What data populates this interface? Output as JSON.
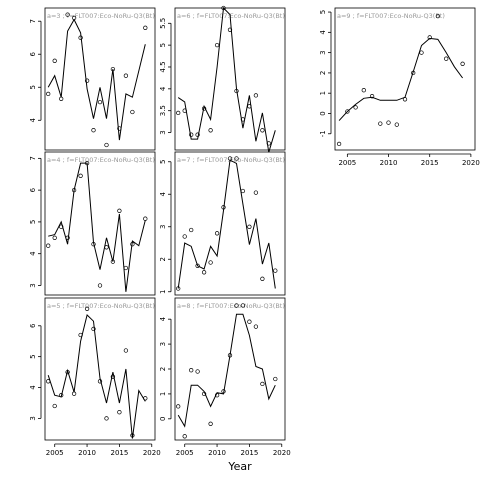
{
  "chart_data": {
    "type": "scatter",
    "layout": "3x3 small multiples (column-major)",
    "xlabel": "Year",
    "x_ticks": [
      2005,
      2010,
      2015,
      2020
    ],
    "x_range": [
      2003.5,
      2020.5
    ],
    "grid": false,
    "panels": [
      {
        "label": "a=3 ; f=FLT007:Eco-NoRu-Q3(Bt)",
        "xlim": [
          2003.5,
          2020.5
        ],
        "ylim": [
          3.1,
          7.4
        ],
        "yticks": [
          4,
          5,
          6,
          7
        ],
        "points": [
          [
            2004,
            4.8
          ],
          [
            2005,
            5.8
          ],
          [
            2006,
            4.65
          ],
          [
            2007,
            7.2
          ],
          [
            2008,
            7.1
          ],
          [
            2009,
            6.5
          ],
          [
            2010,
            5.2
          ],
          [
            2011,
            3.7
          ],
          [
            2012,
            4.55
          ],
          [
            2013,
            3.25
          ],
          [
            2014,
            5.55
          ],
          [
            2015,
            3.75
          ],
          [
            2016,
            5.35
          ],
          [
            2017,
            4.25
          ],
          [
            2019,
            6.8
          ]
        ],
        "line": [
          [
            2004,
            5.0
          ],
          [
            2005,
            5.35
          ],
          [
            2006,
            4.7
          ],
          [
            2007,
            6.7
          ],
          [
            2008,
            7.05
          ],
          [
            2009,
            6.65
          ],
          [
            2010,
            4.95
          ],
          [
            2011,
            4.05
          ],
          [
            2012,
            5.0
          ],
          [
            2013,
            4.05
          ],
          [
            2014,
            5.55
          ],
          [
            2015,
            3.4
          ],
          [
            2016,
            4.8
          ],
          [
            2017,
            4.7
          ],
          [
            2019,
            6.3
          ]
        ]
      },
      {
        "label": "a=4 ; f=FLT007:Eco-NoRu-Q3(Bt)",
        "xlim": [
          2003.5,
          2020.5
        ],
        "ylim": [
          2.7,
          7.2
        ],
        "yticks": [
          3,
          4,
          5,
          6,
          7
        ],
        "points": [
          [
            2004,
            4.25
          ],
          [
            2005,
            4.5
          ],
          [
            2006,
            4.85
          ],
          [
            2007,
            4.5
          ],
          [
            2008,
            6.0
          ],
          [
            2009,
            6.45
          ],
          [
            2010,
            6.85
          ],
          [
            2011,
            4.3
          ],
          [
            2012,
            3.0
          ],
          [
            2013,
            4.2
          ],
          [
            2014,
            3.75
          ],
          [
            2015,
            5.35
          ],
          [
            2016,
            3.55
          ],
          [
            2017,
            4.3
          ],
          [
            2019,
            5.1
          ]
        ],
        "line": [
          [
            2004,
            4.55
          ],
          [
            2005,
            4.6
          ],
          [
            2006,
            5.0
          ],
          [
            2007,
            4.3
          ],
          [
            2008,
            6.0
          ],
          [
            2009,
            6.85
          ],
          [
            2010,
            6.85
          ],
          [
            2011,
            4.35
          ],
          [
            2012,
            3.5
          ],
          [
            2013,
            4.5
          ],
          [
            2014,
            3.75
          ],
          [
            2015,
            5.25
          ],
          [
            2016,
            2.8
          ],
          [
            2017,
            4.4
          ],
          [
            2018,
            4.25
          ],
          [
            2019,
            5.05
          ]
        ]
      },
      {
        "label": "a=5 ; f=FLT007:Eco-NoRu-Q3(Bt)",
        "xlim": [
          2003.5,
          2020.5
        ],
        "ylim": [
          2.3,
          6.9
        ],
        "yticks": [
          3,
          4,
          5,
          6
        ],
        "points": [
          [
            2004,
            4.2
          ],
          [
            2005,
            3.4
          ],
          [
            2006,
            3.75
          ],
          [
            2007,
            4.5
          ],
          [
            2008,
            3.8
          ],
          [
            2009,
            5.7
          ],
          [
            2010,
            6.55
          ],
          [
            2011,
            5.9
          ],
          [
            2012,
            4.2
          ],
          [
            2013,
            3.0
          ],
          [
            2014,
            4.35
          ],
          [
            2015,
            3.2
          ],
          [
            2016,
            5.2
          ],
          [
            2017,
            2.45
          ],
          [
            2019,
            3.65
          ]
        ],
        "line": [
          [
            2004,
            4.4
          ],
          [
            2005,
            3.75
          ],
          [
            2006,
            3.7
          ],
          [
            2007,
            4.55
          ],
          [
            2008,
            3.85
          ],
          [
            2009,
            5.5
          ],
          [
            2010,
            6.35
          ],
          [
            2011,
            6.15
          ],
          [
            2012,
            4.3
          ],
          [
            2013,
            3.5
          ],
          [
            2014,
            4.5
          ],
          [
            2015,
            3.5
          ],
          [
            2016,
            4.6
          ],
          [
            2017,
            2.35
          ],
          [
            2018,
            3.9
          ],
          [
            2019,
            3.55
          ]
        ]
      },
      {
        "label": "a=6 ; f=FLT007:Eco-NoRu-Q3(Bt)",
        "xlim": [
          2003.5,
          2020.5
        ],
        "ylim": [
          2.6,
          5.85
        ],
        "yticks": [
          3.0,
          3.5,
          4.0,
          4.5,
          5.0,
          5.5
        ],
        "points": [
          [
            2004,
            3.45
          ],
          [
            2005,
            3.5
          ],
          [
            2006,
            2.95
          ],
          [
            2007,
            2.95
          ],
          [
            2008,
            3.55
          ],
          [
            2009,
            3.05
          ],
          [
            2010,
            5.0
          ],
          [
            2011,
            5.85
          ],
          [
            2012,
            5.35
          ],
          [
            2013,
            3.95
          ],
          [
            2014,
            3.3
          ],
          [
            2015,
            3.6
          ],
          [
            2016,
            3.85
          ],
          [
            2017,
            3.05
          ],
          [
            2018,
            2.75
          ]
        ],
        "line": [
          [
            2004,
            3.8
          ],
          [
            2005,
            3.7
          ],
          [
            2006,
            2.85
          ],
          [
            2007,
            2.85
          ],
          [
            2008,
            3.6
          ],
          [
            2009,
            3.3
          ],
          [
            2010,
            4.5
          ],
          [
            2011,
            5.85
          ],
          [
            2012,
            5.7
          ],
          [
            2013,
            4.0
          ],
          [
            2014,
            3.1
          ],
          [
            2015,
            3.85
          ],
          [
            2016,
            2.8
          ],
          [
            2017,
            3.45
          ],
          [
            2018,
            2.55
          ],
          [
            2019,
            3.05
          ]
        ]
      },
      {
        "label": "a=7 ; f=FLT007:Eco-NoRu-Q3(Bt)",
        "xlim": [
          2003.5,
          2020.5
        ],
        "ylim": [
          0.9,
          5.3
        ],
        "yticks": [
          1,
          2,
          3,
          4,
          5
        ],
        "points": [
          [
            2004,
            1.1
          ],
          [
            2005,
            2.7
          ],
          [
            2006,
            2.9
          ],
          [
            2007,
            1.8
          ],
          [
            2008,
            1.6
          ],
          [
            2009,
            1.9
          ],
          [
            2010,
            2.8
          ],
          [
            2011,
            3.6
          ],
          [
            2012,
            5.1
          ],
          [
            2013,
            5.1
          ],
          [
            2014,
            4.1
          ],
          [
            2015,
            3.0
          ],
          [
            2016,
            4.05
          ],
          [
            2017,
            1.4
          ],
          [
            2019,
            1.65
          ]
        ],
        "line": [
          [
            2004,
            1.1
          ],
          [
            2005,
            2.5
          ],
          [
            2006,
            2.4
          ],
          [
            2007,
            1.8
          ],
          [
            2008,
            1.7
          ],
          [
            2009,
            2.4
          ],
          [
            2010,
            2.1
          ],
          [
            2011,
            3.5
          ],
          [
            2012,
            5.05
          ],
          [
            2013,
            4.95
          ],
          [
            2014,
            3.7
          ],
          [
            2015,
            2.45
          ],
          [
            2016,
            3.25
          ],
          [
            2017,
            1.85
          ],
          [
            2018,
            2.5
          ],
          [
            2019,
            1.1
          ]
        ]
      },
      {
        "label": "a=8 ; f=FLT007:Eco-NoRu-Q3(Bt)",
        "xlim": [
          2003.5,
          2020.5
        ],
        "ylim": [
          -0.85,
          4.85
        ],
        "yticks": [
          0,
          1,
          2,
          3,
          4
        ],
        "points": [
          [
            2004,
            0.5
          ],
          [
            2005,
            -0.7
          ],
          [
            2006,
            1.95
          ],
          [
            2007,
            1.9
          ],
          [
            2008,
            1.0
          ],
          [
            2009,
            -0.2
          ],
          [
            2010,
            0.95
          ],
          [
            2011,
            1.1
          ],
          [
            2012,
            2.55
          ],
          [
            2013,
            4.55
          ],
          [
            2014,
            4.55
          ],
          [
            2015,
            3.9
          ],
          [
            2016,
            3.7
          ],
          [
            2017,
            1.4
          ],
          [
            2019,
            1.6
          ]
        ],
        "line": [
          [
            2004,
            0.15
          ],
          [
            2005,
            -0.3
          ],
          [
            2006,
            1.35
          ],
          [
            2007,
            1.35
          ],
          [
            2008,
            1.1
          ],
          [
            2009,
            0.5
          ],
          [
            2010,
            1.05
          ],
          [
            2011,
            1.0
          ],
          [
            2012,
            2.55
          ],
          [
            2013,
            4.2
          ],
          [
            2014,
            4.2
          ],
          [
            2015,
            3.35
          ],
          [
            2016,
            2.1
          ],
          [
            2017,
            2.0
          ],
          [
            2018,
            0.8
          ],
          [
            2019,
            1.35
          ]
        ]
      },
      {
        "label": "a=9 ; f=FLT007:Eco-NoRu-Q3(Bt)",
        "xlim": [
          2003.5,
          2020.5
        ],
        "ylim": [
          -1.8,
          5.2
        ],
        "yticks": [
          -1,
          0,
          1,
          2,
          3,
          4,
          5
        ],
        "points": [
          [
            2004,
            -1.5
          ],
          [
            2005,
            0.1
          ],
          [
            2006,
            0.3
          ],
          [
            2007,
            1.15
          ],
          [
            2008,
            0.85
          ],
          [
            2009,
            -0.5
          ],
          [
            2010,
            -0.45
          ],
          [
            2011,
            -0.55
          ],
          [
            2012,
            0.7
          ],
          [
            2013,
            2.0
          ],
          [
            2014,
            3.0
          ],
          [
            2015,
            3.75
          ],
          [
            2016,
            4.8
          ],
          [
            2017,
            2.7
          ],
          [
            2019,
            2.45
          ]
        ],
        "line": [
          [
            2004,
            -0.35
          ],
          [
            2005,
            0.1
          ],
          [
            2006,
            0.45
          ],
          [
            2007,
            0.75
          ],
          [
            2008,
            0.8
          ],
          [
            2009,
            0.65
          ],
          [
            2010,
            0.65
          ],
          [
            2011,
            0.65
          ],
          [
            2012,
            0.8
          ],
          [
            2013,
            2.05
          ],
          [
            2014,
            3.35
          ],
          [
            2015,
            3.7
          ],
          [
            2016,
            3.65
          ],
          [
            2017,
            3.0
          ],
          [
            2018,
            2.3
          ],
          [
            2019,
            1.75
          ]
        ]
      }
    ]
  }
}
